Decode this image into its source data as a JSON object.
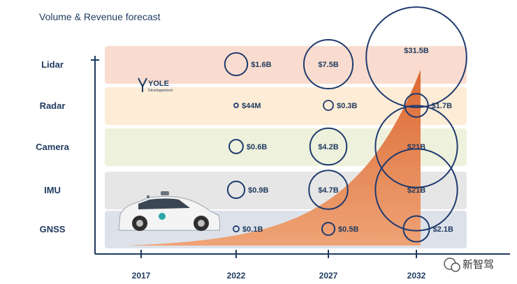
{
  "chart_data": {
    "type": "bubble",
    "title": "Volume & Revenue forecast",
    "categories": [
      "Lidar",
      "Radar",
      "Camera",
      "IMU",
      "GNSS"
    ],
    "x": [
      "2017",
      "2022",
      "2027",
      "2032"
    ],
    "band_colors": [
      "#f9dccf",
      "#fdecd6",
      "#eef2dc",
      "#e6e6e6",
      "#dde2ea"
    ],
    "bubble_color": "#1f3a6e",
    "series": [
      {
        "category": "Lidar",
        "points": [
          {
            "year": "2022",
            "value": 1.6,
            "label": "$1.6B"
          },
          {
            "year": "2027",
            "value": 7.5,
            "label": "$7.5B"
          },
          {
            "year": "2032",
            "value": 31.5,
            "label": "$31.5B"
          }
        ]
      },
      {
        "category": "Radar",
        "points": [
          {
            "year": "2022",
            "value": 0.044,
            "label": "$44M"
          },
          {
            "year": "2027",
            "value": 0.3,
            "label": "$0.3B"
          },
          {
            "year": "2032",
            "value": 1.7,
            "label": "$1.7B"
          }
        ]
      },
      {
        "category": "Camera",
        "points": [
          {
            "year": "2022",
            "value": 0.6,
            "label": "$0.6B"
          },
          {
            "year": "2027",
            "value": 4.2,
            "label": "$4.2B"
          },
          {
            "year": "2032",
            "value": 21,
            "label": "$21B"
          }
        ]
      },
      {
        "category": "IMU",
        "points": [
          {
            "year": "2022",
            "value": 0.9,
            "label": "$0.9B"
          },
          {
            "year": "2027",
            "value": 4.7,
            "label": "$4.7B"
          },
          {
            "year": "2032",
            "value": 21,
            "label": "$21B"
          }
        ]
      },
      {
        "category": "GNSS",
        "points": [
          {
            "year": "2022",
            "value": 0.1,
            "label": "$0.1B"
          },
          {
            "year": "2027",
            "value": 0.5,
            "label": "$0.5B"
          },
          {
            "year": "2032",
            "value": 2.1,
            "label": "$2.1B"
          }
        ]
      }
    ],
    "trend": {
      "type": "area",
      "color": "#e2753c",
      "shape": "exponential"
    }
  },
  "logo": {
    "name": "YOLE",
    "tagline": "Développement"
  },
  "watermark": {
    "text": "新智驾",
    "icon": "wechat-icon"
  }
}
